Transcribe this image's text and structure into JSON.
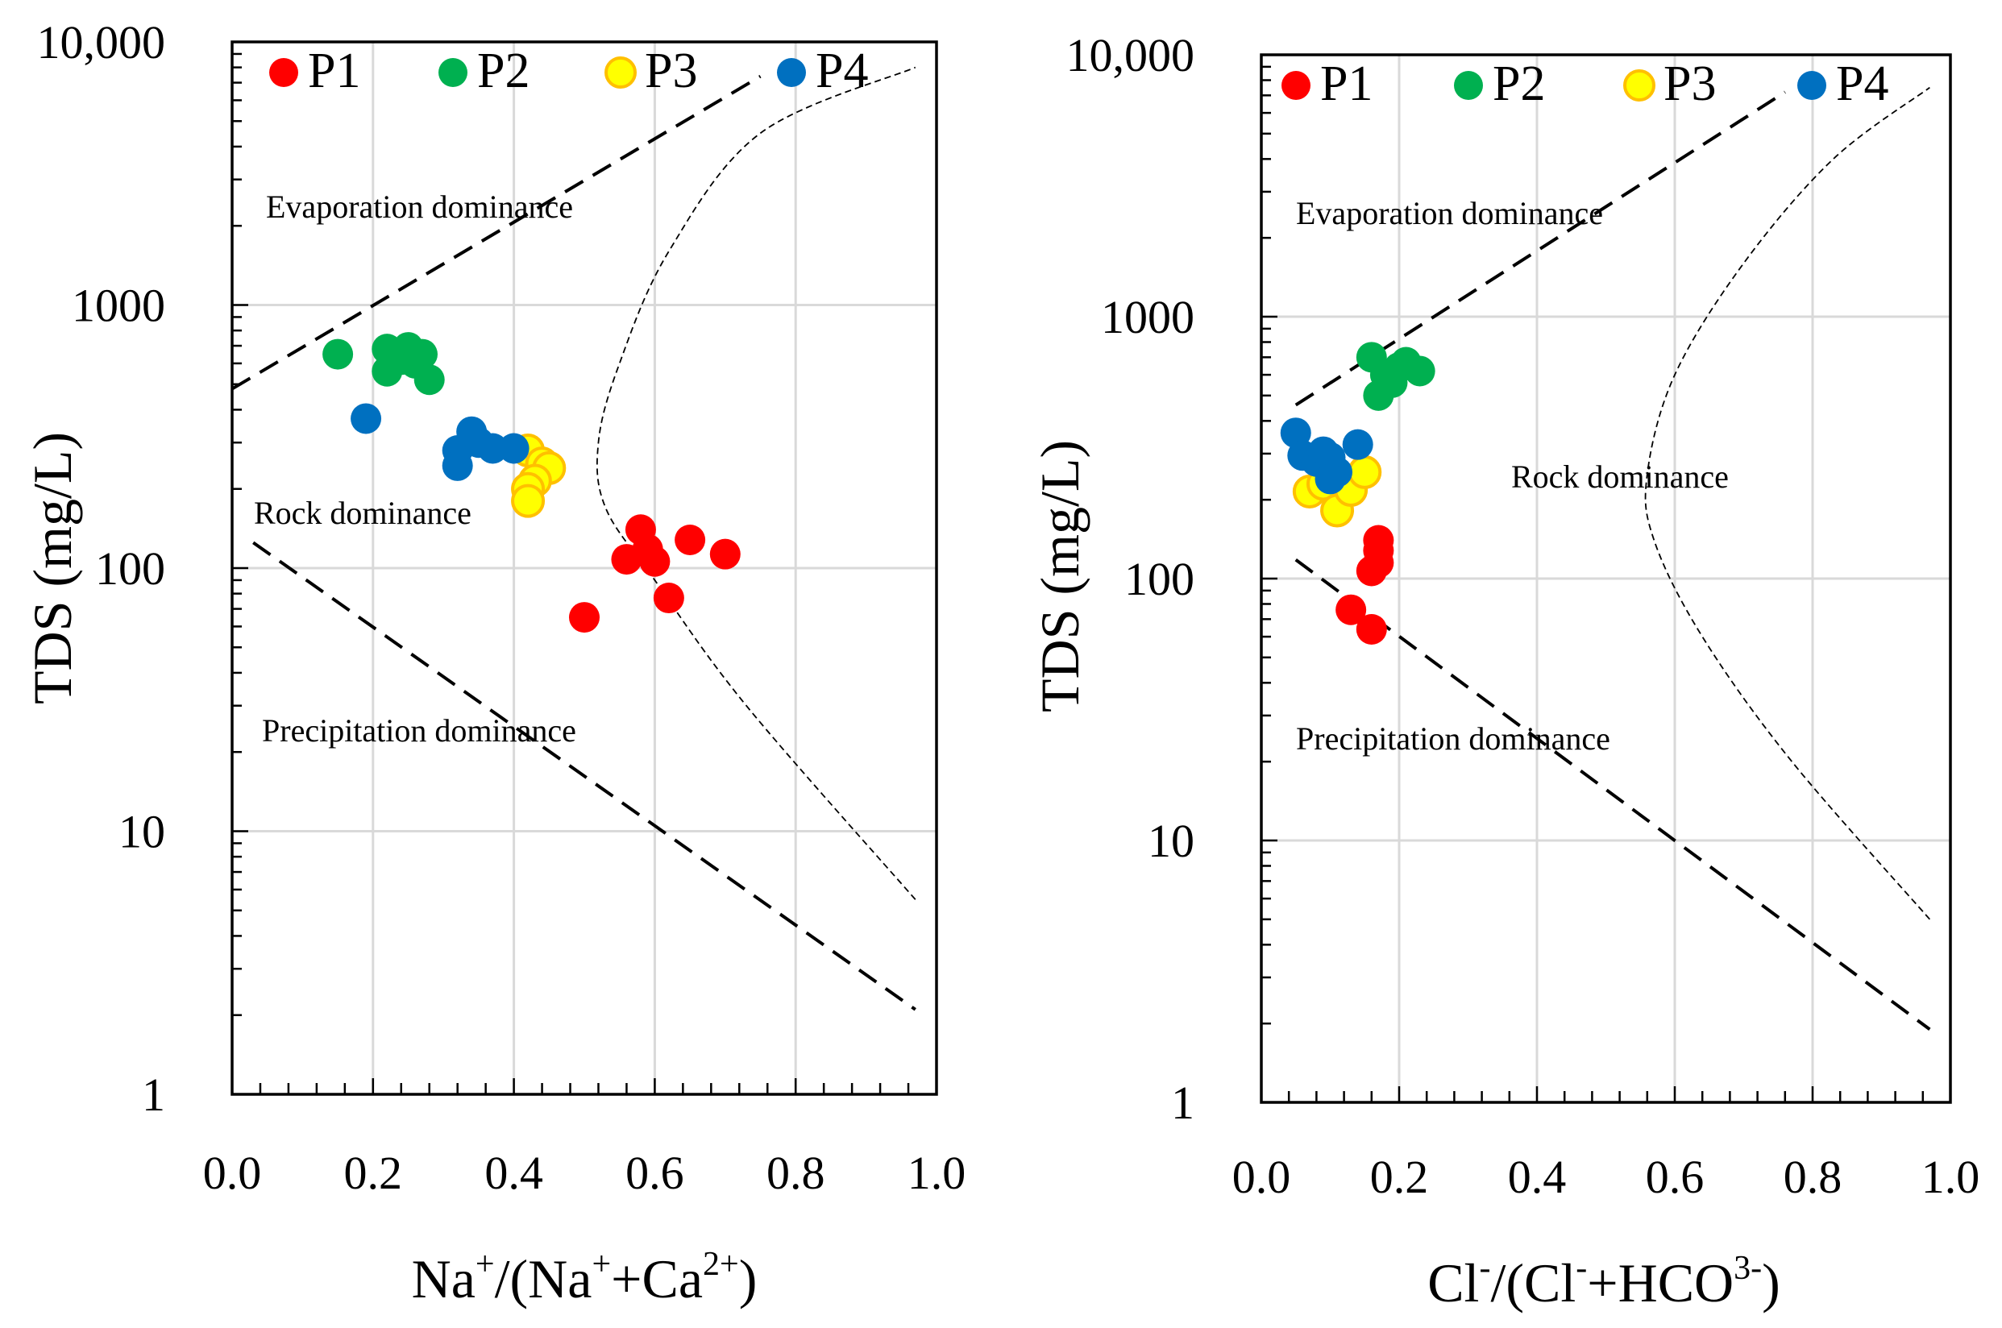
{
  "colors": {
    "P1": "#ff0000",
    "P2": "#00b050",
    "P3": "#ffff00",
    "P3_stroke": "#ffc000",
    "P4": "#0070c0",
    "grid": "#d9d9d9",
    "axis": "#000000"
  },
  "chart_data": [
    {
      "type": "scatter",
      "title": "",
      "xlabel": "Na⁺/(Na⁺+Ca²⁺)",
      "xlabel_parts": [
        "Na",
        "+",
        "/(Na",
        "+",
        "+Ca",
        "2+",
        ")"
      ],
      "ylabel": "TDS (mg/L)",
      "xlim": [
        0,
        1
      ],
      "ylim": [
        1,
        10000
      ],
      "yscale": "log",
      "grid": true,
      "legend": "top-left",
      "x_ticks": [
        "0.0",
        "0.2",
        "0.4",
        "0.6",
        "0.8",
        "1.0"
      ],
      "y_ticks": [
        "1",
        "10",
        "100",
        "1000",
        "10,000"
      ],
      "regions": [
        "Evaporation dominance",
        "Rock dominance",
        "Precipitation dominance"
      ],
      "boundaries": {
        "upper_dashed": {
          "x": [
            0,
            0.75
          ],
          "y": [
            480,
            7400
          ]
        },
        "lower_dashed": {
          "x": [
            0.03,
            0.97
          ],
          "y": [
            125,
            2.1
          ]
        },
        "curve": {
          "x": [
            0.97,
            0.73,
            0.6,
            0.53,
            0.52,
            0.55,
            0.62,
            0.75,
            0.97
          ],
          "y": [
            5.5,
            30,
            90,
            170,
            300,
            600,
            1600,
            4500,
            8000
          ]
        }
      },
      "series": [
        {
          "name": "P1",
          "points": [
            [
              0.5,
              65
            ],
            [
              0.56,
              108
            ],
            [
              0.58,
              140
            ],
            [
              0.59,
              118
            ],
            [
              0.6,
              106
            ],
            [
              0.62,
              77
            ],
            [
              0.65,
              128
            ],
            [
              0.7,
              113
            ]
          ]
        },
        {
          "name": "P2",
          "points": [
            [
              0.15,
              650
            ],
            [
              0.22,
              680
            ],
            [
              0.22,
              560
            ],
            [
              0.24,
              620
            ],
            [
              0.25,
              690
            ],
            [
              0.26,
              600
            ],
            [
              0.27,
              650
            ],
            [
              0.28,
              520
            ]
          ]
        },
        {
          "name": "P3",
          "points": [
            [
              0.42,
              280
            ],
            [
              0.44,
              250
            ],
            [
              0.45,
              240
            ],
            [
              0.43,
              215
            ],
            [
              0.42,
              200
            ],
            [
              0.42,
              180
            ]
          ]
        },
        {
          "name": "P4",
          "points": [
            [
              0.19,
              370
            ],
            [
              0.32,
              280
            ],
            [
              0.32,
              245
            ],
            [
              0.34,
              330
            ],
            [
              0.35,
              300
            ],
            [
              0.37,
              285
            ],
            [
              0.4,
              285
            ]
          ]
        }
      ]
    },
    {
      "type": "scatter",
      "title": "",
      "xlabel": "Cl⁻/(Cl⁻+HCO³⁻)",
      "xlabel_parts": [
        "Cl",
        "-",
        "/(Cl",
        "-",
        "+HCO",
        "3-",
        ")"
      ],
      "ylabel": "TDS (mg/L)",
      "xlim": [
        0,
        1
      ],
      "ylim": [
        1,
        10000
      ],
      "yscale": "log",
      "grid": true,
      "legend": "top-left",
      "x_ticks": [
        "0.0",
        "0.2",
        "0.4",
        "0.6",
        "0.8",
        "1.0"
      ],
      "y_ticks": [
        "1",
        "10",
        "100",
        "1000",
        "10,000"
      ],
      "regions": [
        "Evaporation dominance",
        "Rock dominance",
        "Precipitation dominance"
      ],
      "boundaries": {
        "upper_dashed": {
          "x": [
            0.05,
            0.76
          ],
          "y": [
            460,
            7200
          ]
        },
        "lower_dashed": {
          "x": [
            0.05,
            0.97
          ],
          "y": [
            118,
            1.9
          ]
        },
        "curve": {
          "x": [
            0.97,
            0.77,
            0.64,
            0.57,
            0.56,
            0.6,
            0.7,
            0.83,
            0.97
          ],
          "y": [
            5,
            20,
            60,
            140,
            250,
            600,
            1600,
            4000,
            7500
          ]
        }
      },
      "series": [
        {
          "name": "P1",
          "points": [
            [
              0.13,
              76
            ],
            [
              0.16,
              107
            ],
            [
              0.17,
              115
            ],
            [
              0.17,
              140
            ],
            [
              0.17,
              128
            ],
            [
              0.16,
              64
            ]
          ]
        },
        {
          "name": "P2",
          "points": [
            [
              0.16,
              700
            ],
            [
              0.17,
              500
            ],
            [
              0.18,
              600
            ],
            [
              0.19,
              560
            ],
            [
              0.2,
              640
            ],
            [
              0.21,
              670
            ],
            [
              0.23,
              620
            ]
          ]
        },
        {
          "name": "P3",
          "points": [
            [
              0.07,
              215
            ],
            [
              0.09,
              230
            ],
            [
              0.11,
              182
            ],
            [
              0.13,
              218
            ],
            [
              0.15,
              255
            ],
            [
              0.1,
              260
            ]
          ]
        },
        {
          "name": "P4",
          "points": [
            [
              0.05,
              360
            ],
            [
              0.06,
              295
            ],
            [
              0.08,
              280
            ],
            [
              0.09,
              305
            ],
            [
              0.1,
              290
            ],
            [
              0.11,
              255
            ],
            [
              0.1,
              240
            ],
            [
              0.14,
              325
            ]
          ]
        }
      ]
    }
  ]
}
